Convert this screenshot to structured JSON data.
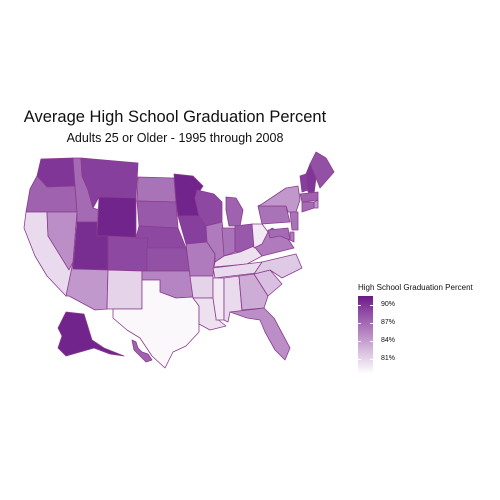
{
  "title": "Average High School Graduation Percent",
  "subtitle": "Adults 25 or Older - 1995 through 2008",
  "legend": {
    "title": "High School Graduation Percent",
    "ticks": [
      "90%",
      "87%",
      "84%",
      "81%"
    ],
    "tick_values": [
      90,
      87,
      84,
      81
    ],
    "range": [
      78.5,
      91.5
    ],
    "color_high": "#6a1b86",
    "color_low": "#ffffff"
  },
  "chart_data": {
    "type": "choropleth",
    "title": "Average High School Graduation Percent",
    "subtitle": "Adults 25 or Older - 1995 through 2008",
    "legend_title": "High School Graduation Percent",
    "legend_placement": "right",
    "states": [
      {
        "id": "WA",
        "value": 90.0
      },
      {
        "id": "OR",
        "value": 87.5
      },
      {
        "id": "CA",
        "value": 81.0
      },
      {
        "id": "NV",
        "value": 85.0
      },
      {
        "id": "ID",
        "value": 87.0
      },
      {
        "id": "MT",
        "value": 89.5
      },
      {
        "id": "WY",
        "value": 91.0
      },
      {
        "id": "UT",
        "value": 90.5
      },
      {
        "id": "AZ",
        "value": 84.5
      },
      {
        "id": "CO",
        "value": 89.0
      },
      {
        "id": "NM",
        "value": 81.5
      },
      {
        "id": "ND",
        "value": 86.5
      },
      {
        "id": "SD",
        "value": 88.0
      },
      {
        "id": "NE",
        "value": 89.0
      },
      {
        "id": "KS",
        "value": 88.5
      },
      {
        "id": "OK",
        "value": 85.5
      },
      {
        "id": "TX",
        "value": 79.0
      },
      {
        "id": "MN",
        "value": 91.0
      },
      {
        "id": "IA",
        "value": 89.5
      },
      {
        "id": "MO",
        "value": 86.0
      },
      {
        "id": "AR",
        "value": 81.5
      },
      {
        "id": "LA",
        "value": 80.5
      },
      {
        "id": "WI",
        "value": 89.0
      },
      {
        "id": "IL",
        "value": 86.0
      },
      {
        "id": "MI",
        "value": 87.5
      },
      {
        "id": "IN",
        "value": 86.5
      },
      {
        "id": "OH",
        "value": 88.0
      },
      {
        "id": "KY",
        "value": 80.5
      },
      {
        "id": "TN",
        "value": 81.0
      },
      {
        "id": "MS",
        "value": 80.0
      },
      {
        "id": "AL",
        "value": 81.0
      },
      {
        "id": "GA",
        "value": 83.5
      },
      {
        "id": "FL",
        "value": 85.0
      },
      {
        "id": "SC",
        "value": 82.5
      },
      {
        "id": "NC",
        "value": 82.0
      },
      {
        "id": "VA",
        "value": 86.0
      },
      {
        "id": "WV",
        "value": 80.0
      },
      {
        "id": "PA",
        "value": 86.5
      },
      {
        "id": "NY",
        "value": 84.5
      },
      {
        "id": "VT",
        "value": 89.5
      },
      {
        "id": "NH",
        "value": 90.0
      },
      {
        "id": "ME",
        "value": 88.5
      },
      {
        "id": "MA",
        "value": 87.5
      },
      {
        "id": "RI",
        "value": 84.5
      },
      {
        "id": "CT",
        "value": 87.0
      },
      {
        "id": "NJ",
        "value": 86.5
      },
      {
        "id": "DE",
        "value": 86.0
      },
      {
        "id": "MD",
        "value": 87.0
      },
      {
        "id": "AK",
        "value": 91.0
      },
      {
        "id": "HI",
        "value": 87.5
      }
    ]
  }
}
